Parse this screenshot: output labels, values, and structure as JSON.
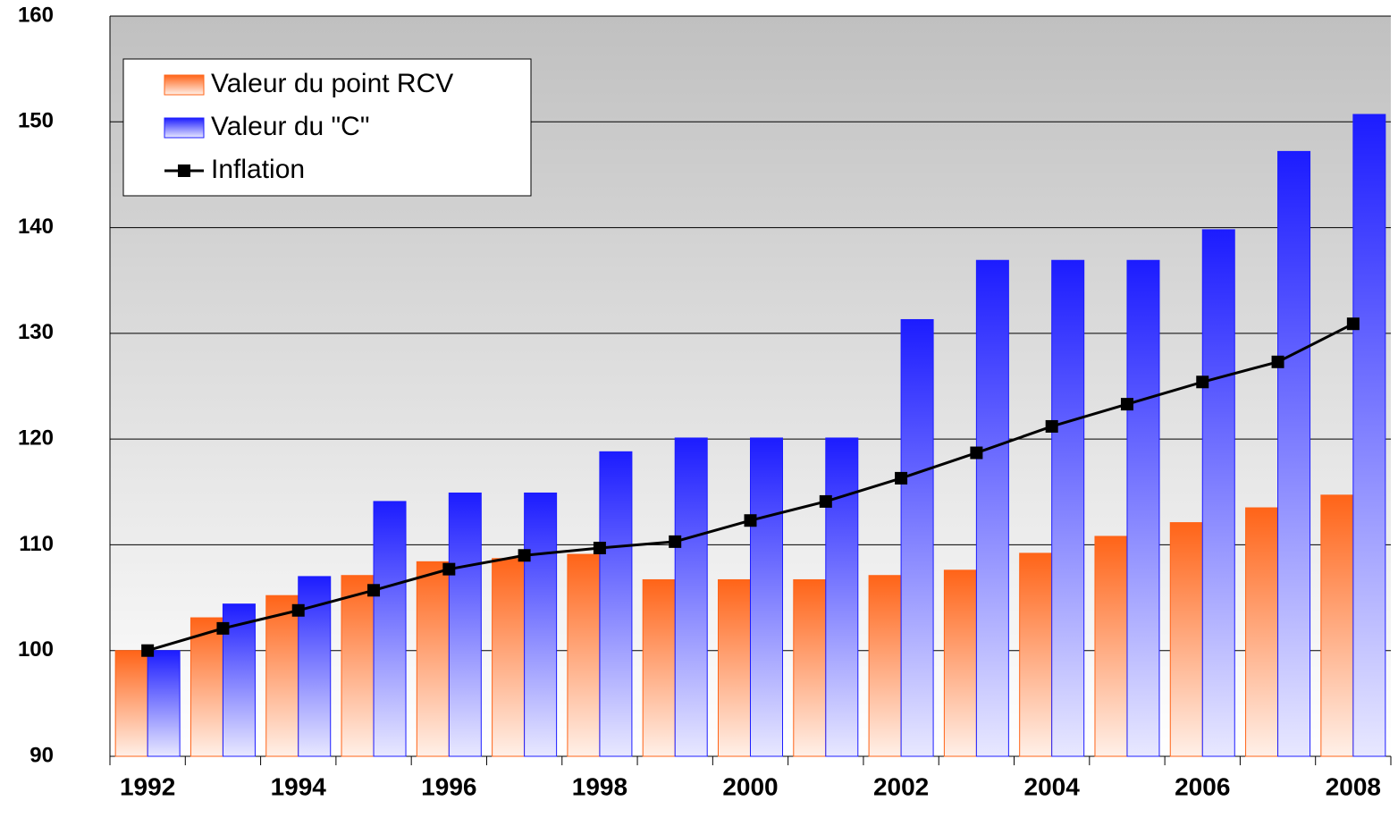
{
  "chart_data": {
    "type": "bar+line",
    "categories": [
      "1992",
      null,
      "1994",
      null,
      "1996",
      null,
      "1998",
      null,
      "2000",
      null,
      "2002",
      null,
      "2004",
      null,
      "2006",
      null,
      "2008"
    ],
    "series": [
      {
        "name": "Valeur du point RCV",
        "type": "bar",
        "color": "#ff6418",
        "values": [
          100,
          103.1,
          105.2,
          107.1,
          108.4,
          108.7,
          109.1,
          106.7,
          106.7,
          106.7,
          107.1,
          107.6,
          109.2,
          110.8,
          112.1,
          113.5,
          114.7
        ]
      },
      {
        "name": "Valeur du \"C\"",
        "type": "bar",
        "color": "#1c1cff",
        "values": [
          100,
          104.4,
          107,
          114.1,
          114.9,
          114.9,
          118.8,
          120.1,
          120.1,
          120.1,
          131.3,
          136.9,
          136.9,
          136.9,
          139.8,
          147.2,
          150.7
        ]
      },
      {
        "name": "Inflation",
        "type": "line",
        "color": "#000000",
        "values": [
          100,
          102.1,
          103.8,
          105.7,
          107.7,
          109,
          109.7,
          110.3,
          112.3,
          114.1,
          116.3,
          118.7,
          121.2,
          123.3,
          125.4,
          127.3,
          130.9
        ]
      }
    ],
    "ylim": [
      90,
      160
    ],
    "yticks": [
      90,
      100,
      110,
      120,
      130,
      140,
      150,
      160
    ],
    "grid": true,
    "legend": "upper left"
  }
}
